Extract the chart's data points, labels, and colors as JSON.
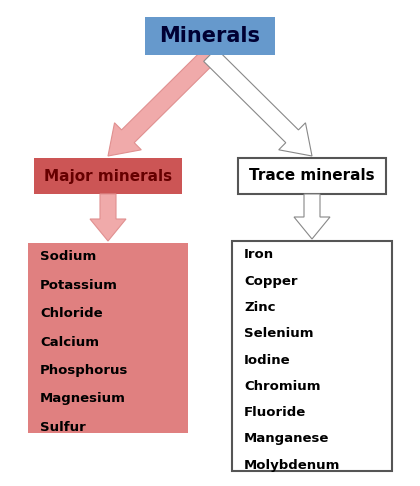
{
  "title": "Minerals",
  "title_box_color": "#6699CC",
  "title_text_color": "#000033",
  "title_font_size": 15,
  "major_label": "Major minerals",
  "major_box_color": "#CC5555",
  "major_box_text_color": "#660000",
  "major_font_size": 11,
  "trace_label": "Trace minerals",
  "trace_box_color": "#FFFFFF",
  "trace_box_edge_color": "#555555",
  "trace_box_text_color": "#000000",
  "trace_font_size": 11,
  "major_items": [
    "Sodium",
    "Potassium",
    "Chloride",
    "Calcium",
    "Phosphorus",
    "Magnesium",
    "Sulfur"
  ],
  "major_items_box_color": "#E08080",
  "major_items_text_color": "#000000",
  "trace_items": [
    "Iron",
    "Copper",
    "Zinc",
    "Selenium",
    "Iodine",
    "Chromium",
    "Fluoride",
    "Manganese",
    "Molybdenum"
  ],
  "trace_items_box_color": "#FFFFFF",
  "trace_items_edge_color": "#555555",
  "trace_items_text_color": "#000000",
  "pink_arrow_color": "#F0AAAA",
  "pink_arrow_edge": "#E09090",
  "white_arrow_color": "#FFFFFF",
  "white_arrow_edge": "#888888",
  "background_color": "#FFFFFF",
  "items_font_size": 9.5
}
